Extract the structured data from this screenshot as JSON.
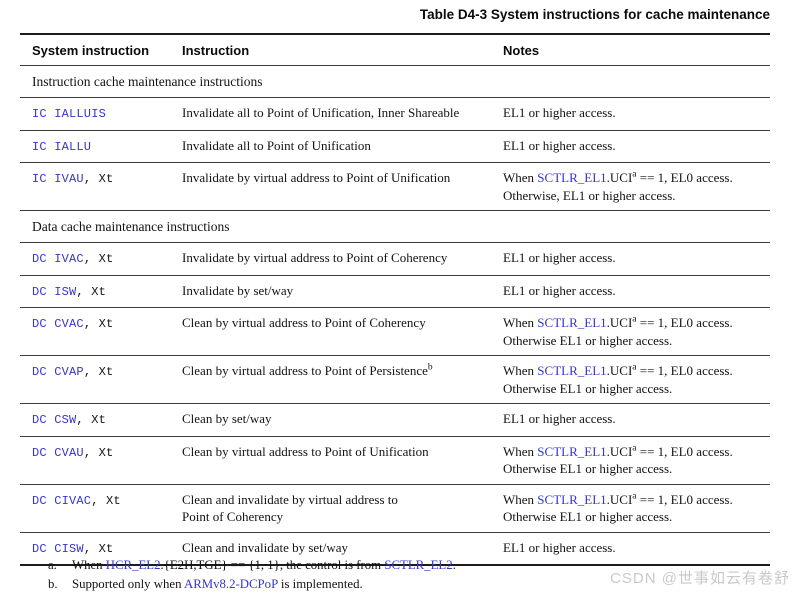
{
  "title": "Table D4-3 System instructions for cache maintenance",
  "columns": [
    "System instruction",
    "Instruction",
    "Notes"
  ],
  "colors": {
    "link_blue": "#3535cf",
    "rule_thin": "#3c3c3c",
    "rule_thick": "#1c1c1c",
    "text": "#121212",
    "watermark": "#ccc8c6"
  },
  "watermark": "CSDN @世事如云有卷舒",
  "rows": [
    {
      "type": "section",
      "label": "Instruction cache maintenance instructions"
    },
    {
      "type": "row",
      "sys": [
        [
          "mono-blue",
          "IC IALLUIS"
        ]
      ],
      "instr": [
        [
          "text",
          "Invalidate all to Point of Unification, Inner Shareable"
        ]
      ],
      "notes": [
        [
          "text",
          "EL1 or higher access."
        ]
      ]
    },
    {
      "type": "row",
      "sys": [
        [
          "mono-blue",
          "IC IALLU"
        ]
      ],
      "instr": [
        [
          "text",
          "Invalidate all to Point of Unification"
        ]
      ],
      "notes": [
        [
          "text",
          "EL1 or higher access."
        ]
      ]
    },
    {
      "type": "row",
      "sys": [
        [
          "mono-blue",
          "IC IVAU"
        ],
        [
          "mono",
          ", Xt"
        ]
      ],
      "instr": [
        [
          "text",
          "Invalidate by virtual address to Point of Unification"
        ]
      ],
      "notes": [
        [
          "text",
          "When "
        ],
        [
          "link",
          "SCTLR_EL1"
        ],
        [
          "text",
          ".UCI"
        ],
        [
          "sup",
          "a"
        ],
        [
          "text",
          " == 1, EL0 access."
        ],
        [
          "br",
          ""
        ],
        [
          "text",
          "Otherwise, EL1 or higher access."
        ]
      ]
    },
    {
      "type": "section",
      "label": "Data cache maintenance instructions"
    },
    {
      "type": "row",
      "sys": [
        [
          "mono-blue",
          "DC IVAC"
        ],
        [
          "mono",
          ", Xt"
        ]
      ],
      "instr": [
        [
          "text",
          "Invalidate by virtual address to Point of Coherency"
        ]
      ],
      "notes": [
        [
          "text",
          "EL1 or higher access."
        ]
      ]
    },
    {
      "type": "row",
      "sys": [
        [
          "mono-blue",
          "DC ISW"
        ],
        [
          "mono",
          ", Xt"
        ]
      ],
      "instr": [
        [
          "text",
          "Invalidate by set/way"
        ]
      ],
      "notes": [
        [
          "text",
          "EL1 or higher access."
        ]
      ]
    },
    {
      "type": "row",
      "sys": [
        [
          "mono-blue",
          "DC CVAC"
        ],
        [
          "mono",
          ", Xt"
        ]
      ],
      "instr": [
        [
          "text",
          "Clean by virtual address to Point of Coherency"
        ]
      ],
      "notes": [
        [
          "text",
          "When "
        ],
        [
          "link",
          "SCTLR_EL1"
        ],
        [
          "text",
          ".UCI"
        ],
        [
          "sup",
          "a"
        ],
        [
          "text",
          " == 1, EL0 access."
        ],
        [
          "br",
          ""
        ],
        [
          "text",
          "Otherwise EL1 or higher access."
        ]
      ]
    },
    {
      "type": "row",
      "sys": [
        [
          "mono-blue",
          "DC CVAP"
        ],
        [
          "mono",
          ", Xt"
        ]
      ],
      "instr": [
        [
          "text",
          "Clean by virtual address to Point of Persistence"
        ],
        [
          "sup",
          "b"
        ]
      ],
      "notes": [
        [
          "text",
          "When "
        ],
        [
          "link",
          "SCTLR_EL1"
        ],
        [
          "text",
          ".UCI"
        ],
        [
          "sup",
          "a"
        ],
        [
          "text",
          " == 1, EL0 access."
        ],
        [
          "br",
          ""
        ],
        [
          "text",
          "Otherwise EL1 or higher access."
        ]
      ]
    },
    {
      "type": "row",
      "sys": [
        [
          "mono-blue",
          "DC CSW"
        ],
        [
          "mono",
          ", Xt"
        ]
      ],
      "instr": [
        [
          "text",
          "Clean by set/way"
        ]
      ],
      "notes": [
        [
          "text",
          "EL1 or higher access."
        ]
      ]
    },
    {
      "type": "row",
      "sys": [
        [
          "mono-blue",
          "DC CVAU"
        ],
        [
          "mono",
          ", Xt"
        ]
      ],
      "instr": [
        [
          "text",
          "Clean by virtual address to Point of Unification"
        ]
      ],
      "notes": [
        [
          "text",
          "When "
        ],
        [
          "link",
          "SCTLR_EL1"
        ],
        [
          "text",
          ".UCI"
        ],
        [
          "sup",
          "a"
        ],
        [
          "text",
          " == 1, EL0 access."
        ],
        [
          "br",
          ""
        ],
        [
          "text",
          "Otherwise EL1 or higher access."
        ]
      ]
    },
    {
      "type": "row",
      "sys": [
        [
          "mono-blue",
          "DC CIVAC"
        ],
        [
          "mono",
          ", Xt"
        ]
      ],
      "instr": [
        [
          "text",
          "Clean and invalidate by virtual address to"
        ],
        [
          "br",
          ""
        ],
        [
          "text",
          "Point of Coherency"
        ]
      ],
      "notes": [
        [
          "text",
          "When "
        ],
        [
          "link",
          "SCTLR_EL1"
        ],
        [
          "text",
          ".UCI"
        ],
        [
          "sup",
          "a"
        ],
        [
          "text",
          " == 1, EL0 access."
        ],
        [
          "br",
          ""
        ],
        [
          "text",
          "Otherwise EL1 or higher access."
        ]
      ]
    },
    {
      "type": "row",
      "sys": [
        [
          "mono-blue",
          "DC CISW"
        ],
        [
          "mono",
          ", Xt"
        ]
      ],
      "instr": [
        [
          "text",
          "Clean and invalidate by set/way"
        ]
      ],
      "notes": [
        [
          "text",
          "EL1 or higher access."
        ]
      ]
    }
  ],
  "footnotes": [
    {
      "marker": "a.",
      "segments": [
        [
          "text",
          "When "
        ],
        [
          "link",
          "HCR_EL2"
        ],
        [
          "text",
          ".{E2H,TGE} == {1, 1}, the control is from "
        ],
        [
          "link",
          "SCTLR_EL2"
        ],
        [
          "text",
          "."
        ]
      ]
    },
    {
      "marker": "b.",
      "segments": [
        [
          "text",
          "Supported only when "
        ],
        [
          "link",
          "ARMv8.2-DCPoP"
        ],
        [
          "text",
          " is implemented."
        ]
      ]
    }
  ]
}
